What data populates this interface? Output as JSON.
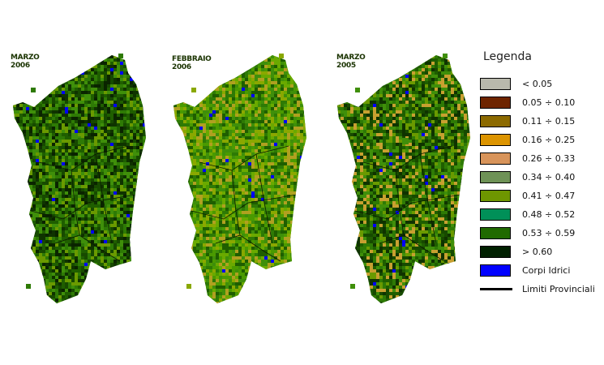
{
  "maps": [
    {
      "month": "MARZO",
      "year": "2006",
      "palette": [
        "#1f5e00",
        "#174a00",
        "#0f3300",
        "#2e7a05",
        "#3f8f0a",
        "#0a2400",
        "#6a9a00"
      ]
    },
    {
      "month": "FEBBRAIO",
      "year": "2006",
      "palette": [
        "#4a9a00",
        "#6aaa00",
        "#2e7a05",
        "#8aa800",
        "#b0a020",
        "#1f5e00",
        "#3f8f0a"
      ]
    },
    {
      "month": "MARZO",
      "year": "2005",
      "palette": [
        "#1f5e00",
        "#2e7a05",
        "#174a00",
        "#3f8f0a",
        "#0f3300",
        "#6a9a00",
        "#c8a030"
      ]
    }
  ],
  "legend": {
    "title": "Legenda",
    "items": [
      {
        "label": "< 0.05",
        "color": "#b8b8ac"
      },
      {
        "label": "0.05 ÷ 0.10",
        "color": "#6e2400"
      },
      {
        "label": "0.11 ÷ 0.15",
        "color": "#8c6a00"
      },
      {
        "label": "0.16 ÷ 0.25",
        "color": "#dc9400"
      },
      {
        "label": "0.26 ÷ 0.33",
        "color": "#d8945a"
      },
      {
        "label": "0.34 ÷ 0.40",
        "color": "#6e9256"
      },
      {
        "label": "0.41 ÷ 0.47",
        "color": "#6e9600"
      },
      {
        "label": "0.48 ÷ 0.52",
        "color": "#009058"
      },
      {
        "label": "0.53 ÷ 0.59",
        "color": "#206a00"
      },
      {
        "label": "> 0.60",
        "color": "#002000"
      },
      {
        "label": "Corpi Idrici",
        "color": "#0000ff"
      }
    ],
    "boundary_label": "Limiti Provinciali"
  }
}
